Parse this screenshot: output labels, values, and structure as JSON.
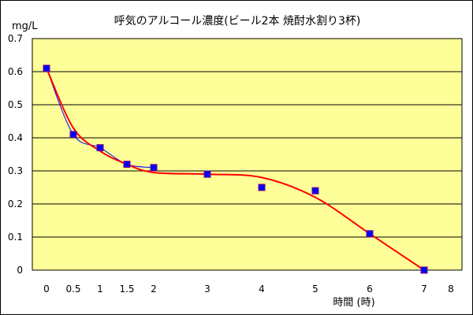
{
  "chart_data": {
    "type": "scatter",
    "title": "呼気のアルコール濃度(ビール2本  焼酎水割り3杯)",
    "ylabel": "mg/L",
    "xlabel": "時間 (時)",
    "ylim": [
      0,
      0.7
    ],
    "y_ticks": [
      "0",
      "0.1",
      "0.2",
      "0.3",
      "0.4",
      "0.5",
      "0.6",
      "0.7"
    ],
    "y_tick_values": [
      0,
      0.1,
      0.2,
      0.3,
      0.4,
      0.5,
      0.6,
      0.7
    ],
    "x_ticks": [
      "0",
      "0.5",
      "1",
      "1.5",
      "2",
      "3",
      "4",
      "5",
      "6",
      "7",
      "8"
    ],
    "grid": true,
    "legend": "none",
    "series": [
      {
        "points": [
          [
            "0",
            0.61
          ],
          [
            "0.5",
            0.41
          ],
          [
            "1",
            0.37
          ],
          [
            "1.5",
            0.32
          ],
          [
            "2",
            0.31
          ],
          [
            "3",
            0.29
          ],
          [
            "4",
            0.25
          ],
          [
            "5",
            0.24
          ],
          [
            "6",
            0.11
          ],
          [
            "7",
            0.0
          ]
        ],
        "marker_color": "#0000ff",
        "connector_color": "#0000ff"
      }
    ],
    "trendline": {
      "color": "#ff0000",
      "points": [
        [
          "0",
          0.61
        ],
        [
          "0.5",
          0.43
        ],
        [
          "1",
          0.36
        ],
        [
          "1.5",
          0.32
        ],
        [
          "2",
          0.295
        ],
        [
          "3",
          0.29
        ],
        [
          "4",
          0.28
        ],
        [
          "5",
          0.22
        ],
        [
          "6",
          0.11
        ],
        [
          "7",
          0.0
        ]
      ]
    },
    "colors": {
      "plot_background": "#ffff99",
      "gridline": "#000000"
    }
  }
}
